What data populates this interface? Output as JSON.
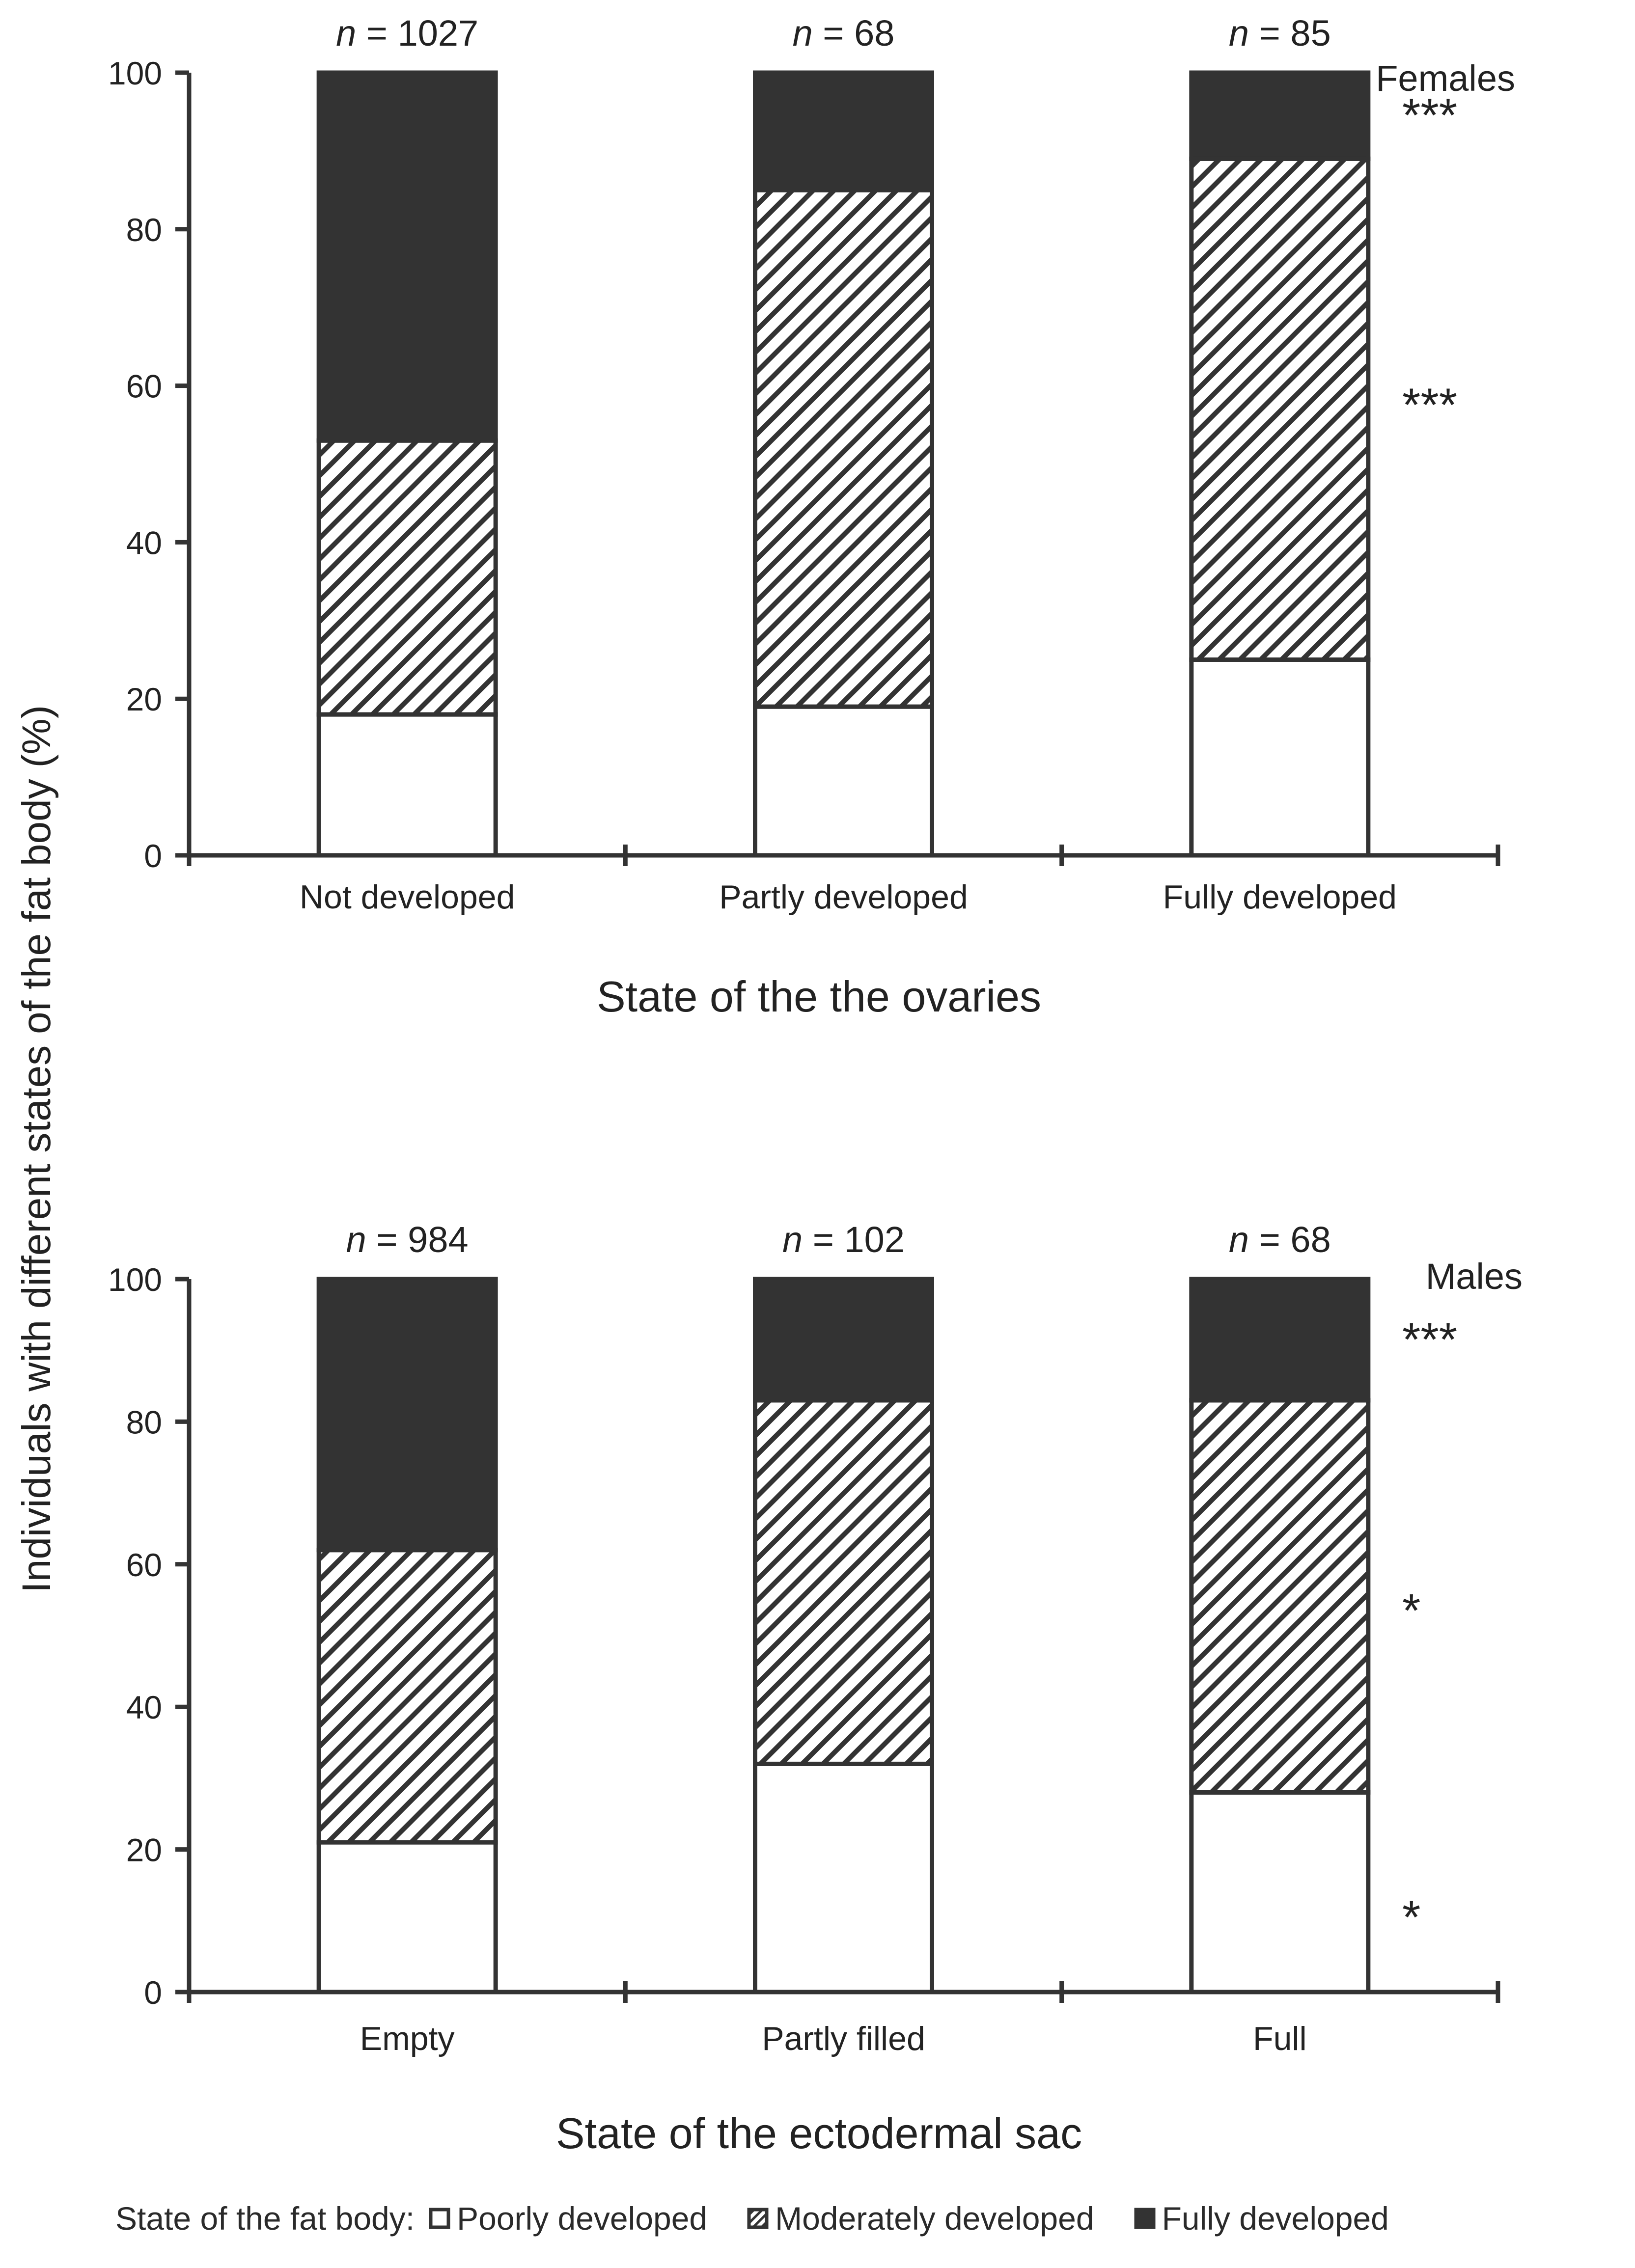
{
  "colors": {
    "fully": "#333333",
    "poorly": "#ffffff",
    "outline": "#333333",
    "axis": "#333333",
    "text": "#222222"
  },
  "y_axis_label": "Individuals with different states of the fat body (%)",
  "legend": {
    "title": "State of the fat body:",
    "items": [
      {
        "label": "Poorly developed",
        "pattern": "solid-white"
      },
      {
        "label": "Moderately developed",
        "pattern": "diagonal-hatch"
      },
      {
        "label": "Fully developed",
        "pattern": "solid-dark"
      }
    ]
  },
  "chart_data": [
    {
      "type": "bar",
      "stacked": true,
      "panel_label": "Females",
      "xlabel": "State of the the ovaries",
      "ylabel": "Individuals with different states of the fat body (%)",
      "ylim": [
        0,
        100
      ],
      "yticks": [
        0,
        20,
        40,
        60,
        80,
        100
      ],
      "categories": [
        "Not developed",
        "Partly developed",
        "Fully developed"
      ],
      "n_labels": [
        {
          "italic": "n",
          "text": " = 1027"
        },
        {
          "italic": "n",
          "text": " = 68"
        },
        {
          "italic": "n",
          "text": " = 85"
        }
      ],
      "series": [
        {
          "name": "Poorly developed",
          "values": [
            18,
            19,
            25
          ]
        },
        {
          "name": "Moderately developed",
          "values": [
            35,
            66,
            64
          ]
        },
        {
          "name": "Fully developed",
          "values": [
            47,
            15,
            11
          ]
        }
      ],
      "significance": [
        {
          "text": "***",
          "at": 95
        },
        {
          "text": "***",
          "at": 58
        }
      ]
    },
    {
      "type": "bar",
      "stacked": true,
      "panel_label": "Males",
      "xlabel": "State of the ectodermal sac",
      "ylabel": "Individuals with different states of the fat body (%)",
      "ylim": [
        0,
        100
      ],
      "yticks": [
        0,
        20,
        40,
        60,
        80,
        100
      ],
      "categories": [
        "Empty",
        "Partly filled",
        "Full"
      ],
      "n_labels": [
        {
          "italic": "n",
          "text": " = 984"
        },
        {
          "italic": "n",
          "text": " = 102"
        },
        {
          "italic": "n",
          "text": " = 68"
        }
      ],
      "series": [
        {
          "name": "Poorly developed",
          "values": [
            21,
            32,
            28
          ]
        },
        {
          "name": "Moderately developed",
          "values": [
            41,
            51,
            55
          ]
        },
        {
          "name": "Fully developed",
          "values": [
            38,
            17,
            17
          ]
        }
      ],
      "significance": [
        {
          "text": "***",
          "at": 92
        },
        {
          "text": "*",
          "at": 54
        },
        {
          "text": "*",
          "at": 11
        }
      ]
    }
  ]
}
